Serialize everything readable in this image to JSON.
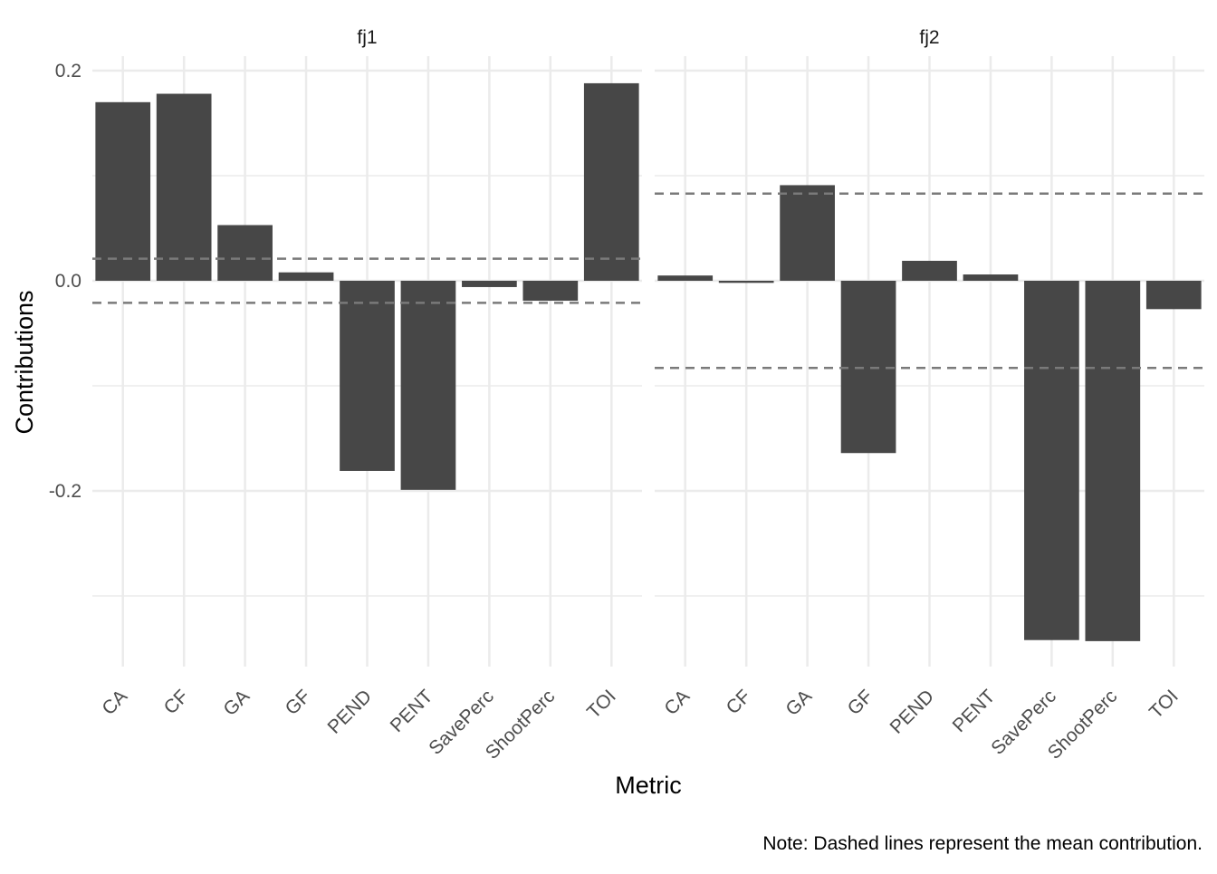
{
  "chart_data": {
    "type": "bar",
    "xlabel": "Metric",
    "ylabel": "Contributions",
    "caption": "Note: Dashed lines represent the mean contribution.",
    "categories": [
      "CA",
      "CF",
      "GA",
      "GF",
      "PEND",
      "PENT",
      "SavePerc",
      "ShootPerc",
      "TOI"
    ],
    "ylim": [
      -0.365,
      0.21
    ],
    "y_ticks": [
      0.2,
      0.0,
      -0.2
    ],
    "y_tick_labels": [
      "0.2",
      "0.0",
      "-0.2"
    ],
    "grid": true,
    "panels": [
      {
        "name": "fj1",
        "values": [
          0.17,
          0.178,
          0.053,
          0.008,
          -0.181,
          -0.199,
          -0.006,
          -0.019,
          0.188
        ],
        "mean_lines": [
          0.021,
          -0.021
        ]
      },
      {
        "name": "fj2",
        "values": [
          0.005,
          -0.002,
          0.091,
          -0.164,
          0.019,
          0.006,
          -0.342,
          -0.343,
          -0.027
        ],
        "mean_lines": [
          0.083,
          -0.083
        ]
      }
    ],
    "colors": {
      "bar": "#474747",
      "grid": "#ebebeb",
      "mean_line": "#7a7a7a"
    }
  }
}
